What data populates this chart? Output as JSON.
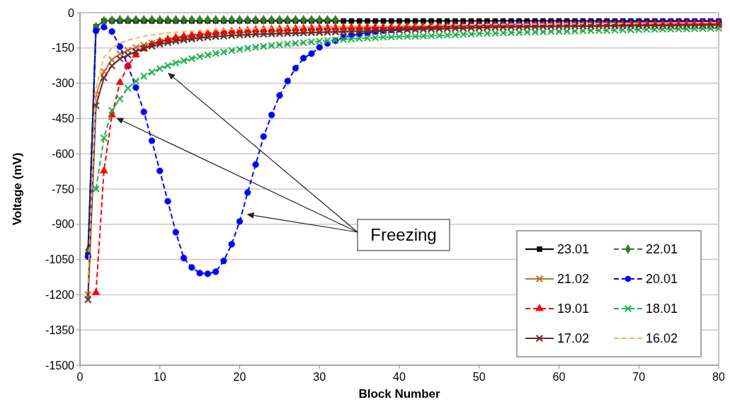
{
  "chart_data": {
    "type": "line",
    "xlabel": "Block Number",
    "ylabel": "Voltage (mV)",
    "xlim": [
      0,
      80
    ],
    "xticks": [
      0,
      10,
      20,
      30,
      40,
      50,
      60,
      70,
      80
    ],
    "ylim": [
      -1500,
      0
    ],
    "yticks": [
      -1500,
      -1350,
      -1200,
      -1050,
      -900,
      -750,
      -600,
      -450,
      -300,
      -150,
      0
    ],
    "grid": "y",
    "legend": "bottom right",
    "x": [
      1,
      2,
      3,
      4,
      5,
      6,
      7,
      8,
      9,
      10,
      11,
      12,
      13,
      14,
      15,
      16,
      17,
      18,
      19,
      20,
      21,
      22,
      23,
      24,
      25,
      26,
      27,
      28,
      29,
      30,
      31,
      32,
      33,
      34,
      35,
      36,
      37,
      38,
      39,
      40,
      41,
      42,
      43,
      44,
      45,
      46,
      47,
      48,
      49,
      50,
      51,
      52,
      53,
      54,
      55,
      56,
      57,
      58,
      59,
      60,
      61,
      62,
      63,
      64,
      65,
      66,
      67,
      68,
      69,
      70,
      71,
      72,
      73,
      74,
      75,
      76,
      77,
      78,
      79,
      80
    ],
    "annotations": [
      "Freezing"
    ],
    "series": [
      {
        "name": "23.01",
        "color": "#000000",
        "marker": "square",
        "line_style": "solid",
        "values": [
          -1030,
          -60,
          -35,
          -35,
          -35,
          -35,
          -35,
          -35,
          -35,
          -35,
          -35,
          -35,
          -35,
          -35,
          -35,
          -35,
          -35,
          -35,
          -35,
          -35,
          -35,
          -35,
          -35,
          -35,
          -35,
          -35,
          -35,
          -35,
          -35,
          -35,
          -35,
          -35,
          -35,
          -35,
          -35,
          -35,
          -35,
          -35,
          -35,
          -35,
          -35,
          -35,
          -35,
          -35,
          -35,
          -35,
          -35,
          -35,
          -35,
          -35,
          -35,
          -35,
          -35,
          -35,
          -35,
          -35,
          -35,
          -35,
          -35,
          -35,
          -35,
          -35,
          -35,
          -35,
          -35,
          -35,
          -35,
          -35,
          -35,
          -35,
          -35,
          -35,
          -35,
          -35,
          -35,
          -35,
          -35,
          -35,
          -35,
          -35
        ]
      },
      {
        "name": "22.01",
        "color": "#2e7d1e",
        "marker": "diamond",
        "line_style": "dashed",
        "values": [
          -1010,
          -60,
          -35,
          -32,
          -30,
          -30,
          -30,
          -30,
          -30,
          -30,
          -30,
          -30,
          -30,
          -30,
          -30,
          -30,
          -30,
          -30,
          -30,
          -30,
          -30,
          -30,
          -30,
          -30,
          -30,
          -30,
          -30,
          -30,
          -30,
          -30,
          -30,
          -30,
          null,
          null,
          null,
          null,
          null,
          null,
          null,
          null,
          null,
          null,
          null,
          null,
          null,
          null,
          null,
          null,
          null,
          null,
          null,
          null,
          null,
          null,
          null,
          null,
          null,
          null,
          null,
          null,
          null,
          null,
          null,
          null,
          null,
          null,
          null,
          null,
          null,
          null,
          null,
          null,
          null,
          null,
          null,
          null,
          null,
          null,
          null,
          null
        ]
      },
      {
        "name": "21.02",
        "color": "#c07030",
        "marker": "cross",
        "line_style": "solid",
        "values": [
          -1200,
          -350,
          -250,
          -200,
          -175,
          -160,
          -148,
          -138,
          -130,
          -124,
          -119,
          -115,
          -111,
          -108,
          -105,
          -102,
          -100,
          -98,
          -96,
          -94,
          -92,
          -90,
          -89,
          -88,
          -87,
          -86,
          -85,
          -84,
          -83,
          -82,
          -81,
          -80,
          -79,
          -78,
          -77,
          -76,
          -75,
          -74,
          -73,
          -72,
          -71,
          -70,
          -69,
          -68,
          -67,
          -66,
          -65,
          -64,
          -63,
          -62,
          -61,
          -60,
          -60,
          -59,
          -59,
          -58,
          -58,
          -57,
          -57,
          -56,
          -56,
          -55,
          -55,
          -55,
          -54,
          -54,
          -54,
          -53,
          -53,
          -53,
          -52,
          -52,
          -52,
          -52,
          -51,
          -51,
          -51,
          -51,
          -50,
          -50
        ]
      },
      {
        "name": "20.01",
        "color": "#0000ff",
        "marker": "circle",
        "line_style": "dashed",
        "values": [
          -1038,
          -77,
          -61,
          -80,
          -144,
          -226,
          -318,
          -422,
          -545,
          -673,
          -802,
          -934,
          -1044,
          -1084,
          -1108,
          -1111,
          -1102,
          -1056,
          -985,
          -888,
          -765,
          -646,
          -527,
          -435,
          -352,
          -291,
          -236,
          -193,
          -174,
          -147,
          -131,
          -119,
          -104,
          -98,
          -90,
          -85,
          -80,
          -76,
          -73,
          -70,
          -67,
          -65,
          -63,
          -61,
          -59,
          -57,
          -56,
          -55,
          -54,
          -53,
          -52,
          -51,
          -50,
          -49,
          -48,
          -48,
          -47,
          -46,
          -46,
          -45,
          -45,
          -44,
          -44,
          -43,
          -43,
          -42,
          -42,
          -41,
          -41,
          -41,
          -40,
          -40,
          -40,
          -39,
          -39,
          -39,
          -38,
          -38,
          -38,
          -38
        ]
      },
      {
        "name": "19.01",
        "color": "#ff0000",
        "marker": "triangle",
        "line_style": "dashed",
        "values": [
          null,
          -1191,
          -673,
          -435,
          -297,
          -226,
          -180,
          -153,
          -135,
          -122,
          -113,
          -106,
          -100,
          -95,
          -91,
          -87,
          -84,
          -81,
          -79,
          -77,
          -75,
          -73,
          -72,
          -71,
          -70,
          -69,
          -68,
          -67,
          -66,
          -65,
          -64,
          -64,
          -63,
          -63,
          -62,
          -62,
          -61,
          -61,
          -60,
          -60,
          -59,
          -59,
          -58,
          -58,
          -57,
          -57,
          -56,
          -56,
          -55,
          -55,
          -54,
          -54,
          -54,
          -53,
          -53,
          -53,
          -52,
          -52,
          -52,
          -51,
          -51,
          -51,
          -50,
          -50,
          -50,
          -49,
          -49,
          -49,
          -48,
          -48,
          -48,
          -47,
          -47,
          -47,
          -46,
          -46,
          -46,
          -45,
          -45,
          -45
        ]
      },
      {
        "name": "18.01",
        "color": "#1fb050",
        "marker": "cross",
        "line_style": "dashed",
        "values": [
          null,
          -750,
          -533,
          -416,
          -367,
          -321,
          -291,
          -270,
          -253,
          -238,
          -225,
          -214,
          -204,
          -195,
          -187,
          -180,
          -173,
          -167,
          -161,
          -156,
          -151,
          -147,
          -143,
          -139,
          -136,
          -133,
          -130,
          -127,
          -124,
          -121,
          -118,
          -116,
          -114,
          -112,
          -110,
          -108,
          -106,
          -104,
          -103,
          -102,
          -101,
          -100,
          -99,
          -98,
          -97,
          -95,
          -94,
          -92,
          -91,
          -89,
          -88,
          -87,
          -86,
          -85,
          -84,
          -83,
          -82,
          -81,
          -80,
          -80,
          -79,
          -78,
          -77,
          -76,
          -75,
          -75,
          -74,
          -73,
          -73,
          -72,
          -71,
          -71,
          -70,
          -70,
          -69,
          -69,
          -68,
          -67,
          -67,
          -66
        ]
      },
      {
        "name": "17.02",
        "color": "#6b2a2a",
        "marker": "cross",
        "line_style": "solid",
        "values": [
          -1221,
          -395,
          -277,
          -226,
          -196,
          -180,
          -165,
          -152,
          -142,
          -134,
          -127,
          -121,
          -116,
          -112,
          -108,
          -105,
          -102,
          -99,
          -97,
          -95,
          -94,
          -92,
          -91,
          -90,
          -89,
          -88,
          -87,
          -86,
          -85,
          -84,
          -83,
          -82,
          -81,
          -80,
          -79,
          -78,
          -77,
          -76,
          -75,
          -74,
          -73,
          -72,
          -71,
          -70,
          -69,
          -68,
          -67,
          -66,
          -65,
          -64,
          -63,
          -62,
          -62,
          -61,
          -61,
          -60,
          -60,
          -59,
          -59,
          -58,
          -58,
          -57,
          -57,
          -57,
          -56,
          -56,
          -56,
          -55,
          -55,
          -55,
          -54,
          -54,
          -54,
          -54,
          -53,
          -53,
          -53,
          -53,
          -52,
          -52
        ]
      },
      {
        "name": "16.02",
        "color": "#f5b850",
        "marker": "none",
        "line_style": "dashed",
        "values": [
          -1150,
          -320,
          -190,
          -150,
          -130,
          -117,
          -108,
          -100,
          -95,
          -90,
          -86,
          -83,
          -80,
          -78,
          -76,
          -74,
          -72,
          -71,
          -70,
          -69,
          -68,
          -67,
          -66,
          -65,
          -64,
          -63,
          -62,
          -62,
          -61,
          -61,
          -60,
          -60,
          -59,
          -59,
          -58,
          -58,
          -57,
          -57,
          -56,
          -56,
          -55,
          -55,
          -54,
          -54,
          -53,
          -53,
          -52,
          -52,
          -51,
          -51,
          -50,
          -50,
          -50,
          -49,
          -49,
          -49,
          -48,
          -48,
          -48,
          -47,
          -47,
          -47,
          -46,
          -46,
          -46,
          -45,
          -45,
          -45,
          -45,
          -44,
          -44,
          -44,
          -44,
          -43,
          -43,
          -43,
          -43,
          -42,
          -42,
          -42
        ]
      }
    ]
  }
}
